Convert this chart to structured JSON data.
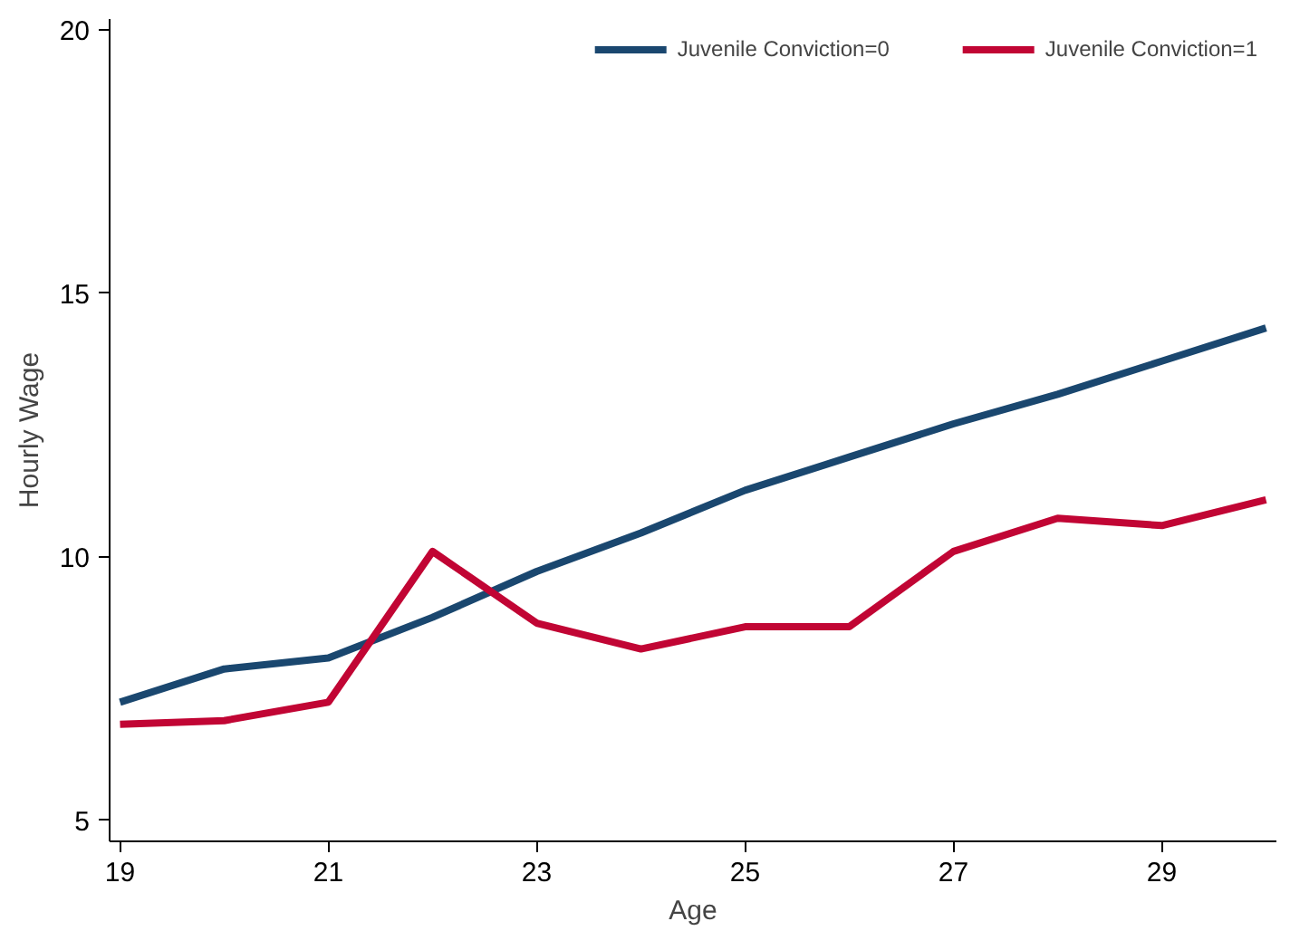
{
  "chart_data": {
    "type": "line",
    "xlabel": "Age",
    "ylabel": "Hourly Wage",
    "x": [
      19,
      20,
      21,
      22,
      23,
      24,
      25,
      26,
      27,
      28,
      29,
      30
    ],
    "series": [
      {
        "name": "Juvenile Conviction=0",
        "color": "#1a476f",
        "values": [
          7.24,
          7.87,
          8.08,
          8.85,
          9.72,
          10.45,
          11.26,
          11.89,
          12.52,
          13.08,
          13.71,
          14.34
        ]
      },
      {
        "name": "Juvenile Conviction=1",
        "color": "#c10534",
        "values": [
          6.82,
          6.89,
          7.24,
          10.1,
          8.74,
          8.25,
          8.67,
          8.67,
          10.1,
          10.73,
          10.59,
          11.08
        ]
      }
    ],
    "xlim": [
      18.9,
      30.1
    ],
    "ylim": [
      4.6,
      20.2
    ],
    "xticks": [
      19,
      21,
      23,
      25,
      27,
      29
    ],
    "yticks": [
      5,
      10,
      15,
      20
    ],
    "grid": false,
    "legend": "top right",
    "marker": "none",
    "line_style": "solid"
  }
}
